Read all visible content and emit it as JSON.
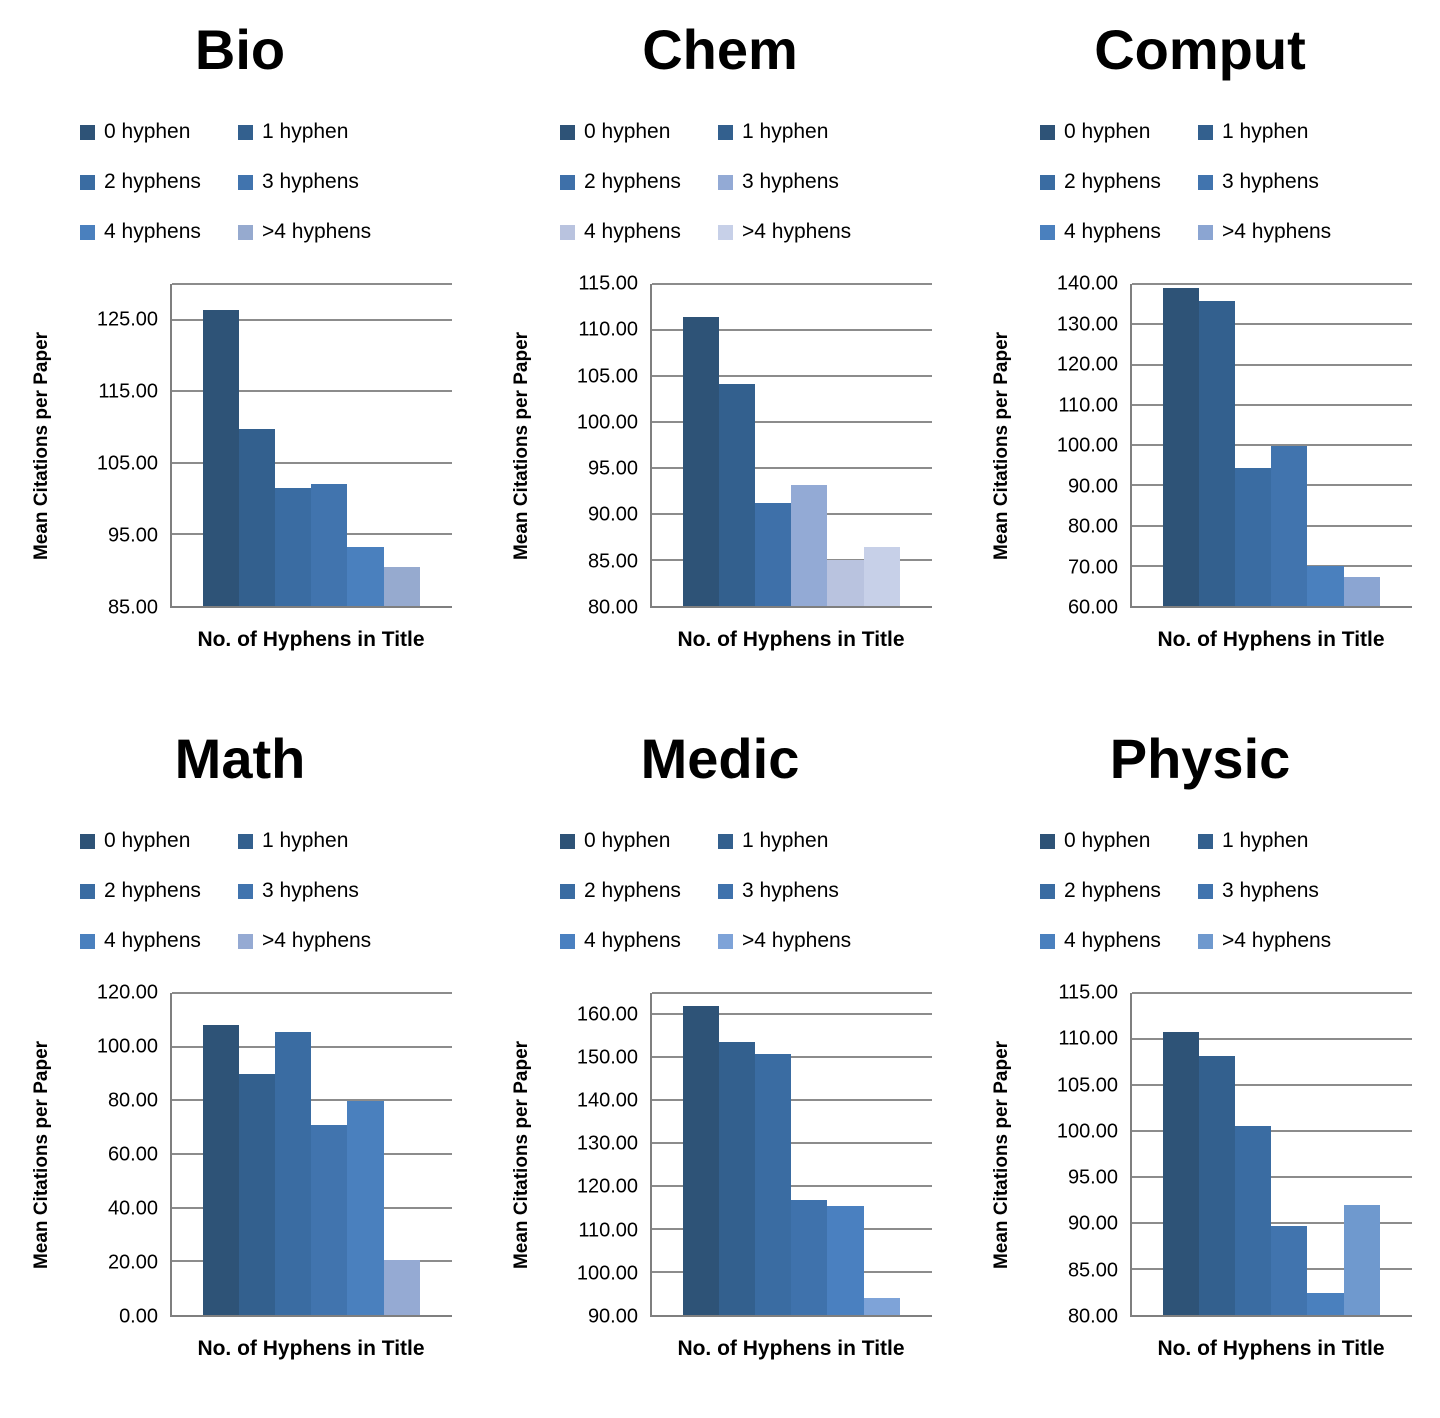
{
  "shared": {
    "ylabel": "Mean Citations per Paper",
    "xlabel": "No. of Hyphens in Title",
    "legend_labels": [
      "0 hyphen",
      "1 hyphen",
      "2 hyphens",
      "3 hyphens",
      "4 hyphens",
      ">4 hyphens"
    ]
  },
  "chart_data": [
    {
      "type": "bar",
      "title": "Bio",
      "categories": [
        "0 hyphen",
        "1 hyphen",
        "2 hyphens",
        "3 hyphens",
        "4 hyphens",
        ">4 hyphens"
      ],
      "values": [
        126.3,
        109.8,
        101.5,
        102.0,
        93.2,
        90.4
      ],
      "xlabel": "No. of Hyphens in Title",
      "ylabel": "Mean Citations per Paper",
      "ylim": [
        85,
        130
      ],
      "yticks": [
        85,
        95,
        105,
        115,
        125
      ],
      "grid": true,
      "legend_position": "top",
      "colors": [
        "#2E5377",
        "#33608E",
        "#3A6CA2",
        "#4174AE",
        "#4A80BE",
        "#96AACF"
      ]
    },
    {
      "type": "bar",
      "title": "Chem",
      "categories": [
        "0 hyphen",
        "1 hyphen",
        "2 hyphens",
        "3 hyphens",
        "4 hyphens",
        ">4 hyphens"
      ],
      "values": [
        111.4,
        104.1,
        91.2,
        93.1,
        85.0,
        86.4
      ],
      "xlabel": "No. of Hyphens in Title",
      "ylabel": "Mean Citations per Paper",
      "ylim": [
        80,
        115
      ],
      "yticks": [
        80,
        85,
        90,
        95,
        100,
        105,
        110,
        115
      ],
      "grid": true,
      "legend_position": "top",
      "colors": [
        "#2E5377",
        "#33608E",
        "#3E70A9",
        "#93AAD5",
        "#B9C3DF",
        "#C7D0E8"
      ]
    },
    {
      "type": "bar",
      "title": "Comput",
      "categories": [
        "0 hyphen",
        "1 hyphen",
        "2 hyphens",
        "3 hyphens",
        "4 hyphens",
        ">4 hyphens"
      ],
      "values": [
        139.0,
        135.8,
        94.2,
        99.7,
        70.0,
        67.3
      ],
      "xlabel": "No. of Hyphens in Title",
      "ylabel": "Mean Citations per Paper",
      "ylim": [
        60,
        140
      ],
      "yticks": [
        60,
        70,
        80,
        90,
        100,
        110,
        120,
        130,
        140
      ],
      "grid": true,
      "legend_position": "top",
      "colors": [
        "#2E5377",
        "#33608E",
        "#3A6CA2",
        "#4174AE",
        "#4A80BE",
        "#8BA5D2"
      ]
    },
    {
      "type": "bar",
      "title": "Math",
      "categories": [
        "0 hyphen",
        "1 hyphen",
        "2 hyphens",
        "3 hyphens",
        "4 hyphens",
        ">4 hyphens"
      ],
      "values": [
        108.2,
        89.9,
        105.4,
        70.8,
        79.9,
        20.4
      ],
      "xlabel": "No. of Hyphens in Title",
      "ylabel": "Mean Citations per Paper",
      "ylim": [
        0,
        120
      ],
      "yticks": [
        0,
        20,
        40,
        60,
        80,
        100,
        120
      ],
      "grid": true,
      "legend_position": "top",
      "colors": [
        "#2E5377",
        "#33608E",
        "#3A6CA2",
        "#4174AE",
        "#4A80BE",
        "#95AAD3"
      ]
    },
    {
      "type": "bar",
      "title": "Medic",
      "categories": [
        "0 hyphen",
        "1 hyphen",
        "2 hyphens",
        "3 hyphens",
        "4 hyphens",
        ">4 hyphens"
      ],
      "values": [
        162.0,
        153.5,
        150.9,
        116.8,
        115.4,
        94.0
      ],
      "xlabel": "No. of Hyphens in Title",
      "ylabel": "Mean Citations per Paper",
      "ylim": [
        90,
        165
      ],
      "yticks": [
        90,
        100,
        110,
        120,
        130,
        140,
        150,
        160
      ],
      "grid": true,
      "legend_position": "top",
      "colors": [
        "#2E5377",
        "#33608E",
        "#3A6CA2",
        "#3F72AC",
        "#4A80C0",
        "#7EA3D8"
      ]
    },
    {
      "type": "bar",
      "title": "Physic",
      "categories": [
        "0 hyphen",
        "1 hyphen",
        "2 hyphens",
        "3 hyphens",
        "4 hyphens",
        ">4 hyphens"
      ],
      "values": [
        110.8,
        108.1,
        100.5,
        89.7,
        82.4,
        92.0
      ],
      "xlabel": "No. of Hyphens in Title",
      "ylabel": "Mean Citations per Paper",
      "ylim": [
        80,
        115
      ],
      "yticks": [
        80,
        85,
        90,
        95,
        100,
        105,
        110,
        115
      ],
      "grid": true,
      "legend_position": "top",
      "colors": [
        "#2E5377",
        "#33608E",
        "#3A6CA2",
        "#4174AE",
        "#4A80BE",
        "#6F99CE"
      ]
    }
  ]
}
